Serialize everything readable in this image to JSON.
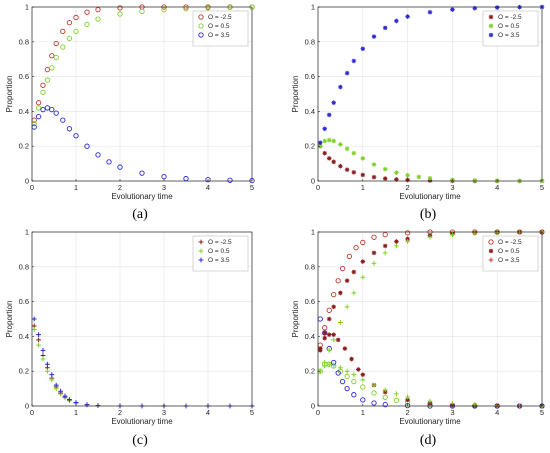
{
  "colors": {
    "red": "#c0392b",
    "green": "#7fd12b",
    "blue": "#2a2ad4",
    "dark_red": "#8b1c1c",
    "axis": "#262626"
  },
  "chart_data": [
    {
      "panel_label": "(a)",
      "type": "scatter",
      "xlabel": "Evolutionary time",
      "ylabel": "Proportion",
      "xlim": [
        0,
        5
      ],
      "ylim": [
        0,
        1
      ],
      "xticks": [
        "0",
        "1",
        "2",
        "3",
        "4",
        "5"
      ],
      "yticks": [
        "0",
        "0.2",
        "0.4",
        "0.6",
        "0.8",
        "1"
      ],
      "grid": true,
      "legend_position": "top-right",
      "marker": "circle",
      "series": [
        {
          "name": "O = -2.5",
          "color": "red",
          "x": [
            0.05,
            0.15,
            0.25,
            0.35,
            0.45,
            0.55,
            0.7,
            0.85,
            1.0,
            1.25,
            1.5,
            2.0,
            2.5,
            3.0,
            3.5,
            4.0,
            4.5,
            5.0
          ],
          "y": [
            0.35,
            0.45,
            0.55,
            0.64,
            0.72,
            0.79,
            0.86,
            0.91,
            0.94,
            0.97,
            0.985,
            0.995,
            1.0,
            1.0,
            1.0,
            1.0,
            1.0,
            1.0
          ]
        },
        {
          "name": "O = 0.5",
          "color": "green",
          "x": [
            0.05,
            0.15,
            0.25,
            0.35,
            0.45,
            0.55,
            0.7,
            0.85,
            1.0,
            1.25,
            1.5,
            2.0,
            2.5,
            3.0,
            3.5,
            4.0,
            4.5,
            5.0
          ],
          "y": [
            0.33,
            0.42,
            0.51,
            0.58,
            0.65,
            0.71,
            0.77,
            0.82,
            0.86,
            0.9,
            0.93,
            0.96,
            0.975,
            0.985,
            0.99,
            0.995,
            0.998,
            1.0
          ]
        },
        {
          "name": "O = 3.5",
          "color": "blue",
          "x": [
            0.05,
            0.15,
            0.25,
            0.35,
            0.45,
            0.55,
            0.7,
            0.85,
            1.0,
            1.25,
            1.5,
            1.75,
            2.0,
            2.5,
            3.0,
            3.5,
            4.0,
            4.5,
            5.0
          ],
          "y": [
            0.31,
            0.37,
            0.41,
            0.42,
            0.41,
            0.39,
            0.35,
            0.3,
            0.26,
            0.2,
            0.15,
            0.11,
            0.08,
            0.045,
            0.025,
            0.014,
            0.008,
            0.004,
            0.002
          ]
        }
      ]
    },
    {
      "panel_label": "(b)",
      "type": "scatter",
      "xlabel": "Evolutionary time",
      "ylabel": "Proportion",
      "xlim": [
        0,
        5
      ],
      "ylim": [
        0,
        1
      ],
      "xticks": [
        "0",
        "1",
        "2",
        "3",
        "4",
        "5"
      ],
      "yticks": [
        "0",
        "0.2",
        "0.4",
        "0.6",
        "0.8",
        "1"
      ],
      "grid": true,
      "legend_position": "top-right",
      "marker": "star",
      "series": [
        {
          "name": "O = -2.5",
          "color": "dark_red",
          "x": [
            0.05,
            0.15,
            0.25,
            0.35,
            0.5,
            0.65,
            0.8,
            1.0,
            1.25,
            1.5,
            1.75,
            2.0,
            2.5,
            3.0,
            3.5,
            4.0,
            4.5,
            5.0
          ],
          "y": [
            0.2,
            0.16,
            0.13,
            0.11,
            0.085,
            0.065,
            0.05,
            0.035,
            0.022,
            0.014,
            0.009,
            0.006,
            0.003,
            0.001,
            0.0,
            0.0,
            0.0,
            0.0
          ]
        },
        {
          "name": "O = 0.5",
          "color": "green",
          "x": [
            0.05,
            0.15,
            0.25,
            0.35,
            0.5,
            0.65,
            0.8,
            1.0,
            1.25,
            1.5,
            1.75,
            2.0,
            2.25,
            2.5,
            3.0,
            3.5,
            4.0,
            4.5,
            5.0
          ],
          "y": [
            0.2,
            0.23,
            0.235,
            0.23,
            0.21,
            0.185,
            0.16,
            0.13,
            0.095,
            0.068,
            0.048,
            0.033,
            0.023,
            0.016,
            0.007,
            0.003,
            0.001,
            0.0,
            0.0
          ]
        },
        {
          "name": "O = 3.5",
          "color": "blue",
          "x": [
            0.05,
            0.15,
            0.25,
            0.35,
            0.5,
            0.65,
            0.8,
            1.0,
            1.25,
            1.5,
            1.75,
            2.0,
            2.5,
            3.0,
            3.5,
            4.0,
            4.5,
            5.0
          ],
          "y": [
            0.22,
            0.3,
            0.38,
            0.45,
            0.54,
            0.62,
            0.69,
            0.76,
            0.83,
            0.88,
            0.92,
            0.945,
            0.97,
            0.985,
            0.993,
            0.997,
            0.999,
            1.0
          ]
        }
      ]
    },
    {
      "panel_label": "(c)",
      "type": "scatter",
      "xlabel": "Evolutionary time",
      "ylabel": "Proportion",
      "xlim": [
        0,
        5
      ],
      "ylim": [
        0,
        1
      ],
      "xticks": [
        "0",
        "1",
        "2",
        "3",
        "4",
        "5"
      ],
      "yticks": [
        "0",
        "0.2",
        "0.4",
        "0.6",
        "0.8",
        "1"
      ],
      "grid": true,
      "legend_position": "top-right",
      "marker": "plus",
      "series": [
        {
          "name": "O = -2.5",
          "color": "dark_red",
          "x": [
            0.05,
            0.15,
            0.25,
            0.35,
            0.45,
            0.55,
            0.65,
            0.75,
            0.85,
            1.0,
            1.25,
            1.5,
            2.0,
            2.5,
            3.0,
            3.5,
            4.0,
            4.5,
            5.0
          ],
          "y": [
            0.46,
            0.38,
            0.29,
            0.22,
            0.16,
            0.11,
            0.075,
            0.05,
            0.033,
            0.018,
            0.007,
            0.003,
            0.0,
            0.0,
            0.0,
            0.0,
            0.0,
            0.0,
            0.0
          ]
        },
        {
          "name": "O = 0.5",
          "color": "green",
          "x": [
            0.05,
            0.15,
            0.25,
            0.35,
            0.45,
            0.55,
            0.65,
            0.75,
            0.85,
            1.0,
            1.25,
            1.5,
            2.0,
            2.5,
            3.0,
            3.5,
            4.0,
            4.5,
            5.0
          ],
          "y": [
            0.44,
            0.35,
            0.27,
            0.2,
            0.15,
            0.1,
            0.07,
            0.047,
            0.03,
            0.016,
            0.006,
            0.002,
            0.0,
            0.0,
            0.0,
            0.0,
            0.0,
            0.0,
            0.0
          ]
        },
        {
          "name": "O = 3.5",
          "color": "blue",
          "x": [
            0.05,
            0.15,
            0.25,
            0.35,
            0.45,
            0.55,
            0.65,
            0.75,
            0.85,
            1.0,
            1.25,
            1.5,
            2.0,
            2.5,
            3.0,
            3.5,
            4.0,
            4.5,
            5.0
          ],
          "y": [
            0.5,
            0.41,
            0.32,
            0.24,
            0.18,
            0.12,
            0.085,
            0.057,
            0.037,
            0.02,
            0.008,
            0.003,
            0.0,
            0.0,
            0.0,
            0.0,
            0.0,
            0.0,
            0.0
          ]
        }
      ]
    },
    {
      "panel_label": "(d)",
      "type": "scatter",
      "xlabel": "Evolutionary time",
      "ylabel": "Proportion",
      "xlim": [
        0,
        5
      ],
      "ylim": [
        0,
        1
      ],
      "xticks": [
        "0",
        "1",
        "2",
        "3",
        "4",
        "5"
      ],
      "yticks": [
        "0",
        "0.2",
        "0.4",
        "0.6",
        "0.8",
        "1"
      ],
      "grid": true,
      "legend_position": "top-right",
      "legend": [
        {
          "name": "O = -2.5",
          "color": "red",
          "marker": "circle"
        },
        {
          "name": "O = 0.5",
          "color": "dark_red",
          "marker": "star"
        },
        {
          "name": "O = 3.5",
          "color": "red",
          "marker": "plus"
        }
      ],
      "series": [
        {
          "group": "O = -2.5",
          "color": "red",
          "marker": "circle",
          "x": [
            0.05,
            0.15,
            0.25,
            0.35,
            0.45,
            0.55,
            0.7,
            0.85,
            1.0,
            1.25,
            1.5,
            2.0,
            2.5,
            3.0,
            3.5,
            4.0,
            4.5,
            5.0
          ],
          "y": [
            0.35,
            0.45,
            0.55,
            0.64,
            0.72,
            0.79,
            0.86,
            0.91,
            0.94,
            0.97,
            0.985,
            0.995,
            1.0,
            1.0,
            1.0,
            1.0,
            1.0,
            1.0
          ]
        },
        {
          "group": "O = -2.5",
          "color": "green",
          "marker": "circle",
          "x": [
            0.05,
            0.15,
            0.25,
            0.35,
            0.5,
            0.65,
            0.8,
            1.0,
            1.25,
            1.5,
            1.75,
            2.0,
            2.5,
            3.0,
            3.5,
            4.0,
            4.5,
            5.0
          ],
          "y": [
            0.2,
            0.24,
            0.24,
            0.23,
            0.2,
            0.17,
            0.14,
            0.11,
            0.075,
            0.05,
            0.033,
            0.022,
            0.01,
            0.004,
            0.002,
            0.001,
            0.0,
            0.0
          ]
        },
        {
          "group": "O = -2.5",
          "color": "blue",
          "marker": "circle",
          "x": [
            0.05,
            0.15,
            0.25,
            0.35,
            0.45,
            0.55,
            0.65,
            0.8,
            1.0,
            1.25,
            1.5,
            2.0,
            2.5,
            3.0,
            3.5,
            4.0,
            4.5,
            5.0
          ],
          "y": [
            0.5,
            0.42,
            0.33,
            0.25,
            0.19,
            0.14,
            0.1,
            0.065,
            0.035,
            0.017,
            0.008,
            0.002,
            0.0,
            0.0,
            0.0,
            0.0,
            0.0,
            0.0
          ]
        },
        {
          "group": "O = 0.5",
          "color": "dark_red",
          "marker": "star",
          "x": [
            0.05,
            0.15,
            0.25,
            0.35,
            0.5,
            0.65,
            0.8,
            1.0,
            1.25,
            1.5,
            1.75,
            2.0,
            2.5,
            3.0,
            3.5,
            4.0,
            4.5,
            5.0
          ],
          "y": [
            0.32,
            0.42,
            0.5,
            0.57,
            0.65,
            0.72,
            0.77,
            0.83,
            0.88,
            0.92,
            0.945,
            0.96,
            0.98,
            0.99,
            0.995,
            0.998,
            1.0,
            1.0
          ]
        },
        {
          "group": "O = 0.5",
          "color": "dark_red",
          "marker": "star",
          "x": [
            0.05,
            0.15,
            0.25,
            0.35,
            0.45,
            0.6,
            0.75,
            0.9,
            1.0,
            1.25,
            1.5,
            2.0,
            2.5,
            3.0,
            3.5,
            4.0,
            4.5,
            5.0
          ],
          "y": [
            0.33,
            0.39,
            0.41,
            0.41,
            0.38,
            0.33,
            0.27,
            0.21,
            0.18,
            0.12,
            0.08,
            0.035,
            0.015,
            0.006,
            0.002,
            0.001,
            0.0,
            0.0
          ]
        },
        {
          "group": "O = 3.5",
          "color": "green",
          "marker": "plus",
          "x": [
            0.05,
            0.15,
            0.25,
            0.35,
            0.5,
            0.65,
            0.8,
            1.0,
            1.25,
            1.5,
            1.75,
            2.0,
            2.5,
            3.0,
            3.5,
            4.0,
            4.5,
            5.0
          ],
          "y": [
            0.2,
            0.25,
            0.32,
            0.38,
            0.48,
            0.57,
            0.65,
            0.74,
            0.82,
            0.88,
            0.92,
            0.945,
            0.97,
            0.985,
            0.993,
            0.997,
            0.999,
            1.0
          ]
        },
        {
          "group": "O = 3.5",
          "color": "green",
          "marker": "plus",
          "x": [
            0.05,
            0.15,
            0.25,
            0.35,
            0.5,
            0.65,
            0.8,
            1.0,
            1.25,
            1.5,
            1.75,
            2.0,
            2.5,
            3.0,
            3.5,
            4.0,
            4.5,
            5.0
          ],
          "y": [
            0.2,
            0.23,
            0.24,
            0.235,
            0.22,
            0.2,
            0.18,
            0.15,
            0.12,
            0.092,
            0.07,
            0.052,
            0.028,
            0.014,
            0.007,
            0.003,
            0.001,
            0.0
          ]
        }
      ]
    }
  ]
}
